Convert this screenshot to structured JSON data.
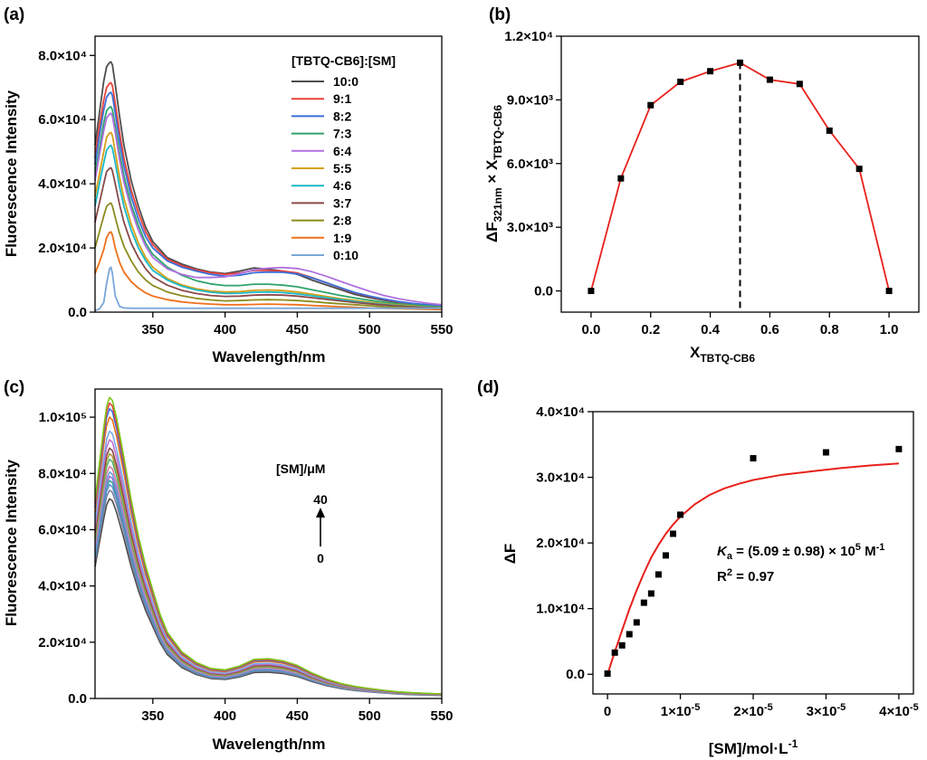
{
  "chart_data": [
    {
      "id": "a",
      "panel_label": "(a)",
      "type": "line",
      "xlabel": "Wavelength/nm",
      "ylabel": "Fluorescence Intensity",
      "xlim": [
        310,
        550
      ],
      "ylim": [
        0,
        86000
      ],
      "xticks": [
        350,
        400,
        450,
        500,
        550
      ],
      "yticks": [
        {
          "value": 0,
          "label": "0.0"
        },
        {
          "value": 20000,
          "label": "2.0×10⁴"
        },
        {
          "value": 40000,
          "label": "4.0×10⁴"
        },
        {
          "value": 60000,
          "label": "6.0×10⁴"
        },
        {
          "value": 80000,
          "label": "8.0×10⁴"
        }
      ],
      "legend_title": "[TBTQ-CB6]:[SM]",
      "legend_position": "top-right",
      "x": [
        310,
        313,
        316,
        318,
        320,
        321,
        322,
        324,
        327,
        330,
        335,
        340,
        345,
        350,
        360,
        370,
        380,
        390,
        400,
        410,
        420,
        430,
        440,
        450,
        460,
        470,
        480,
        490,
        500,
        510,
        520,
        530,
        540,
        550
      ],
      "series": [
        {
          "name": "10:0",
          "color": "#4d4d4d",
          "values": [
            52000,
            62000,
            72000,
            76500,
            77800,
            78000,
            77000,
            71000,
            61000,
            52000,
            41000,
            33000,
            26500,
            22000,
            17000,
            15000,
            13500,
            12500,
            12000,
            12800,
            13800,
            13400,
            12800,
            11800,
            10000,
            8500,
            7000,
            5500,
            4500,
            3700,
            3000,
            2500,
            2100,
            1800
          ]
        },
        {
          "name": "9:1",
          "color": "#e8403a",
          "values": [
            48000,
            58000,
            66000,
            70000,
            71300,
            71500,
            70500,
            65000,
            56000,
            48000,
            38000,
            31000,
            25000,
            21000,
            16500,
            14500,
            13200,
            12300,
            11800,
            12200,
            13000,
            13000,
            12800,
            12200,
            10800,
            9200,
            7500,
            6000,
            4900,
            4000,
            3200,
            2600,
            2200,
            1900
          ]
        },
        {
          "name": "8:2",
          "color": "#3a6fd8",
          "values": [
            46000,
            55000,
            63000,
            67000,
            68300,
            68500,
            67500,
            62000,
            53000,
            45500,
            36000,
            29000,
            23500,
            20000,
            16000,
            14000,
            12800,
            11800,
            11200,
            11500,
            12300,
            12500,
            12400,
            11900,
            10700,
            9200,
            7600,
            6100,
            5000,
            4100,
            3300,
            2700,
            2300,
            2000
          ]
        },
        {
          "name": "7:3",
          "color": "#2fa36b",
          "values": [
            43000,
            51000,
            59000,
            62800,
            63800,
            64000,
            63000,
            58000,
            49500,
            42500,
            33500,
            27000,
            21500,
            18000,
            14000,
            11500,
            9800,
            8800,
            8300,
            8300,
            8700,
            8700,
            8400,
            7900,
            7000,
            6100,
            5200,
            4400,
            3700,
            3100,
            2600,
            2200,
            1900,
            1600
          ]
        },
        {
          "name": "6:4",
          "color": "#b070e0",
          "values": [
            41000,
            49000,
            56500,
            60500,
            61700,
            62000,
            61000,
            56000,
            47500,
            40500,
            32000,
            25500,
            20500,
            17000,
            13500,
            11800,
            10800,
            10800,
            11000,
            12000,
            13200,
            13700,
            13900,
            13600,
            12600,
            11200,
            9600,
            8000,
            6500,
            5200,
            4200,
            3400,
            2800,
            2300
          ]
        },
        {
          "name": "5:5",
          "color": "#d4a017",
          "values": [
            36000,
            43000,
            50000,
            54500,
            55800,
            56000,
            55000,
            50000,
            42000,
            35500,
            27500,
            21500,
            17000,
            14000,
            10500,
            8500,
            7300,
            6600,
            6300,
            6400,
            6800,
            6900,
            6700,
            6300,
            5600,
            4900,
            4200,
            3600,
            3100,
            2600,
            2200,
            1900,
            1600,
            1400
          ]
        },
        {
          "name": "4:6",
          "color": "#1ab8c8",
          "values": [
            33000,
            40000,
            46500,
            50500,
            51700,
            52000,
            51000,
            46500,
            39000,
            33000,
            25500,
            20000,
            16000,
            13000,
            10000,
            8100,
            6900,
            6200,
            5800,
            5900,
            6200,
            6300,
            6100,
            5700,
            5100,
            4500,
            3900,
            3300,
            2800,
            2400,
            2000,
            1700,
            1500,
            1300
          ]
        },
        {
          "name": "3:7",
          "color": "#8a4a4a",
          "values": [
            28000,
            34000,
            40000,
            43800,
            44800,
            45000,
            44000,
            40000,
            33500,
            28000,
            21500,
            17000,
            13500,
            11000,
            8400,
            6800,
            5800,
            5200,
            4900,
            5000,
            5300,
            5400,
            5300,
            5000,
            4500,
            4000,
            3500,
            3000,
            2600,
            2200,
            1900,
            1600,
            1400,
            1200
          ]
        },
        {
          "name": "2:8",
          "color": "#8c8c1f",
          "values": [
            20000,
            25000,
            30000,
            33000,
            33800,
            34000,
            33000,
            29500,
            24500,
            20500,
            16000,
            12500,
            10000,
            8300,
            6300,
            5100,
            4300,
            3800,
            3500,
            3600,
            3800,
            3900,
            3800,
            3600,
            3300,
            2900,
            2600,
            2300,
            2000,
            1700,
            1500,
            1300,
            1100,
            1000
          ]
        },
        {
          "name": "1:9",
          "color": "#f0701a",
          "values": [
            12000,
            15500,
            19500,
            23300,
            24800,
            25000,
            24000,
            20000,
            15500,
            12500,
            9500,
            7500,
            6000,
            5000,
            3900,
            3200,
            2800,
            2500,
            2300,
            2300,
            2400,
            2500,
            2400,
            2300,
            2100,
            1900,
            1700,
            1500,
            1300,
            1200,
            1100,
            1000,
            900,
            800
          ]
        },
        {
          "name": "0:10",
          "color": "#7aa7d8",
          "values": [
            500,
            1000,
            3000,
            9000,
            13500,
            14000,
            12000,
            5000,
            1800,
            1300,
            1200,
            1200,
            1200,
            1200,
            1200,
            1200,
            1200,
            1200,
            1200,
            1200,
            1200,
            1200,
            1200,
            1200,
            1200,
            1200,
            1200,
            1200,
            1200,
            1200,
            1200,
            1200,
            1200,
            1200
          ]
        }
      ]
    },
    {
      "id": "b",
      "panel_label": "(b)",
      "type": "line",
      "xlabel_main": "X",
      "xlabel_sub": "TBTQ-CB6",
      "ylabel_main": "ΔF",
      "ylabel_sub1": "321nm",
      "ylabel_mid": " × X",
      "ylabel_sub2": "TBTQ-CB6",
      "xlim": [
        -0.1,
        1.1
      ],
      "ylim": [
        -1000,
        12000
      ],
      "xticks": [
        {
          "value": 0,
          "label": "0.0"
        },
        {
          "value": 0.2,
          "label": "0.2"
        },
        {
          "value": 0.4,
          "label": "0.4"
        },
        {
          "value": 0.6,
          "label": "0.6"
        },
        {
          "value": 0.8,
          "label": "0.8"
        },
        {
          "value": 1.0,
          "label": "1.0"
        }
      ],
      "yticks": [
        {
          "value": 0,
          "label": "0.0"
        },
        {
          "value": 3000,
          "label": "3.0×10³"
        },
        {
          "value": 6000,
          "label": "6.0×10³"
        },
        {
          "value": 9000,
          "label": "9.0×10³"
        },
        {
          "value": 12000,
          "label": "1.2×10⁴"
        }
      ],
      "x": [
        0,
        0.1,
        0.2,
        0.3,
        0.4,
        0.5,
        0.6,
        0.7,
        0.8,
        0.9,
        1.0
      ],
      "y": [
        0,
        5300,
        8750,
        9850,
        10350,
        10750,
        9950,
        9750,
        7550,
        5750,
        0
      ],
      "line_color": "#e8201a",
      "vline_x": 0.5
    },
    {
      "id": "c",
      "panel_label": "(c)",
      "type": "line",
      "xlabel": "Wavelength/nm",
      "ylabel": "Fluorescence Intensity",
      "xlim": [
        310,
        550
      ],
      "ylim": [
        0,
        110000
      ],
      "xticks": [
        350,
        400,
        450,
        500,
        550
      ],
      "yticks": [
        {
          "value": 0,
          "label": "0.0"
        },
        {
          "value": 20000,
          "label": "2.0×10⁴"
        },
        {
          "value": 40000,
          "label": "4.0×10⁴"
        },
        {
          "value": 60000,
          "label": "6.0×10⁴"
        },
        {
          "value": 80000,
          "label": "8.0×10⁴"
        },
        {
          "value": 100000,
          "label": "1.0×10⁵"
        }
      ],
      "annotation_title": "[SM]/μM",
      "arrow_top": "40",
      "arrow_bottom": "0",
      "x": [
        310,
        313,
        316,
        318,
        320,
        322,
        325,
        330,
        335,
        340,
        345,
        350,
        355,
        360,
        370,
        380,
        390,
        400,
        410,
        420,
        430,
        440,
        450,
        460,
        470,
        480,
        490,
        500,
        510,
        520,
        530,
        540,
        550
      ],
      "shape": [
        0.66,
        0.78,
        0.9,
        0.97,
        1.0,
        0.99,
        0.93,
        0.8,
        0.66,
        0.54,
        0.44,
        0.36,
        0.28,
        0.22,
        0.155,
        0.12,
        0.1,
        0.095,
        0.108,
        0.13,
        0.132,
        0.125,
        0.11,
        0.085,
        0.065,
        0.05,
        0.04,
        0.033,
        0.027,
        0.022,
        0.019,
        0.017,
        0.015
      ],
      "series": [
        {
          "color": "#4d4d4d",
          "peak": 71000
        },
        {
          "color": "#7f7f9f",
          "peak": 74000
        },
        {
          "color": "#5a8fd0",
          "peak": 76000
        },
        {
          "color": "#2fa3a0",
          "peak": 77500
        },
        {
          "color": "#9a6fd0",
          "peak": 79000
        },
        {
          "color": "#6aa0e0",
          "peak": 80500
        },
        {
          "color": "#e07aa0",
          "peak": 82500
        },
        {
          "color": "#4fb070",
          "peak": 85000
        },
        {
          "color": "#b0a030",
          "peak": 87000
        },
        {
          "color": "#8a4a4a",
          "peak": 89000
        },
        {
          "color": "#c070d0",
          "peak": 92000
        },
        {
          "color": "#7aa7e8",
          "peak": 95000
        },
        {
          "color": "#f0701a",
          "peak": 100000
        },
        {
          "color": "#3a6fd8",
          "peak": 103000
        },
        {
          "color": "#e8403a",
          "peak": 105000
        },
        {
          "color": "#7ac81a",
          "peak": 107000
        }
      ]
    },
    {
      "id": "d",
      "panel_label": "(d)",
      "type": "scatter",
      "xlabel_main": "[SM]/mol·L",
      "xlabel_sup": "-1",
      "ylabel": "ΔF",
      "xlim": [
        -2e-06,
        4.2e-05
      ],
      "ylim": [
        -3000,
        40000
      ],
      "xticks": [
        {
          "value": 0,
          "label": "0",
          "sup": ""
        },
        {
          "value": 1e-05,
          "label": "1×10",
          "sup": "-5"
        },
        {
          "value": 2e-05,
          "label": "2×10",
          "sup": "-5"
        },
        {
          "value": 3e-05,
          "label": "3×10",
          "sup": "-5"
        },
        {
          "value": 4e-05,
          "label": "4×10",
          "sup": "-5"
        }
      ],
      "yticks": [
        {
          "value": 0,
          "label": "0.0"
        },
        {
          "value": 10000,
          "label": "1.0×10⁴"
        },
        {
          "value": 20000,
          "label": "2.0×10⁴"
        },
        {
          "value": 30000,
          "label": "3.0×10⁴"
        },
        {
          "value": 40000,
          "label": "4.0×10⁴"
        }
      ],
      "x": [
        0,
        1e-06,
        2e-06,
        3e-06,
        4e-06,
        5e-06,
        6e-06,
        7e-06,
        8e-06,
        9e-06,
        1e-05,
        2e-05,
        3e-05,
        4e-05
      ],
      "y": [
        100,
        3300,
        4400,
        6100,
        7900,
        10900,
        12300,
        15200,
        18100,
        21400,
        24300,
        32900,
        33800,
        34300
      ],
      "fit_color": "#e8201a",
      "fit_x": [
        0,
        1e-06,
        2e-06,
        3e-06,
        4e-06,
        5e-06,
        6e-06,
        7e-06,
        8e-06,
        9e-06,
        1e-05,
        1.2e-05,
        1.4e-05,
        1.6e-05,
        1.8e-05,
        2e-05,
        2.4e-05,
        2.8e-05,
        3.2e-05,
        3.6e-05,
        4e-05
      ],
      "fit_y": [
        0,
        3400,
        6700,
        9900,
        12800,
        15400,
        17800,
        19700,
        21400,
        22800,
        24000,
        25900,
        27300,
        28300,
        29000,
        29600,
        30400,
        30900,
        31400,
        31800,
        32100
      ],
      "ka_italic": "K",
      "ka_sub": "a",
      "ka_text": " = (5.09 ± 0.98) × 10",
      "ka_sup1": "5",
      "ka_unit": " M",
      "ka_sup2": "-1",
      "r2_main": "R",
      "r2_sup": "2",
      "r2_text": " = 0.97"
    }
  ]
}
